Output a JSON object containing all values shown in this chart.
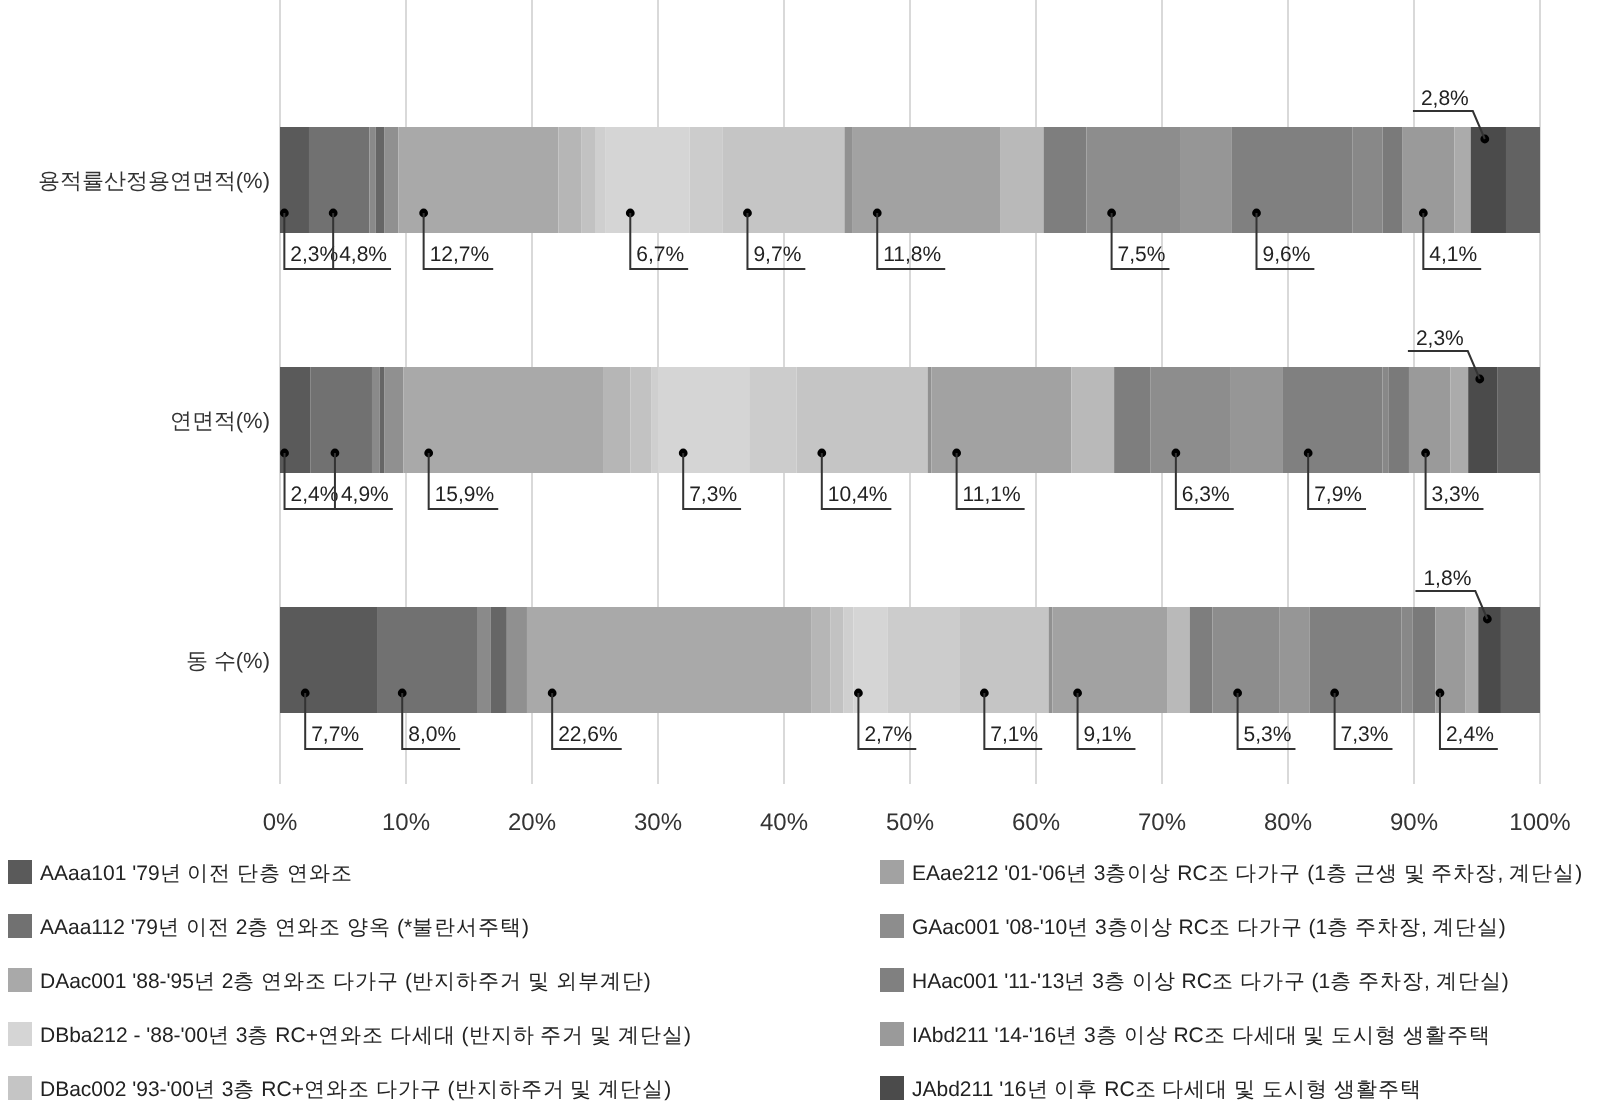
{
  "chart_data": {
    "type": "bar",
    "orientation": "horizontal",
    "stacked": true,
    "grid": "x",
    "legend": "bottom",
    "categories": [
      "용적률산정용연면적(%)",
      "연면적(%)",
      "동 수(%)"
    ],
    "xlim": [
      0,
      100
    ],
    "xticks": [
      {
        "value": 0,
        "label": "0%"
      },
      {
        "value": 10,
        "label": "10%"
      },
      {
        "value": 20,
        "label": "20%"
      },
      {
        "value": 30,
        "label": "30%"
      },
      {
        "value": 40,
        "label": "40%"
      },
      {
        "value": 50,
        "label": "50%"
      },
      {
        "value": 60,
        "label": "60%"
      },
      {
        "value": 70,
        "label": "70%"
      },
      {
        "value": 80,
        "label": "80%"
      },
      {
        "value": 90,
        "label": "90%"
      },
      {
        "value": 100,
        "label": "100%"
      }
    ],
    "series": [
      {
        "name": "AAaa101 '79년 이전 단층 연와조",
        "color": "#5a5a5a",
        "values": [
          2.3,
          2.4,
          7.7
        ],
        "value_labels": [
          "2,3%",
          "2,4%",
          "7,7%"
        ]
      },
      {
        "name": "AAaa112 '79년 이전 2층 연와조 양옥 (*불란서주택)",
        "color": "#717171",
        "values": [
          4.8,
          4.9,
          8.0
        ],
        "value_labels": [
          "4,8%",
          "4,9%",
          "8,0%"
        ]
      },
      {
        "color": "#8a8a8a",
        "values": [
          0.5,
          0.6,
          1.0
        ]
      },
      {
        "color": "#666666",
        "values": [
          0.7,
          0.4,
          1.3
        ]
      },
      {
        "color": "#909090",
        "values": [
          1.1,
          1.5,
          1.6
        ]
      },
      {
        "name": "DAac001 '88-'95년 2층 연와조 다가구 (반지하주거 및 외부계단)",
        "color": "#a9a9a9",
        "values": [
          12.7,
          15.9,
          22.6
        ],
        "value_labels": [
          "12,7%",
          "15,9%",
          "22,6%"
        ]
      },
      {
        "color": "#b6b6b6",
        "values": [
          1.8,
          2.1,
          1.5
        ]
      },
      {
        "color": "#c2c2c2",
        "values": [
          1.1,
          1.7,
          1.0
        ]
      },
      {
        "color": "#cfcfcf",
        "values": [
          0.8,
          0.5,
          0.8
        ]
      },
      {
        "name": "DBba212 - '88-'00년 3층 RC+연와조 다세대 (반지하 주거 및 계단실)",
        "color": "#d5d5d5",
        "values": [
          6.7,
          7.3,
          2.7
        ],
        "value_labels": [
          "6,7%",
          "7,3%",
          "2,7%"
        ]
      },
      {
        "color": "#cccccc",
        "values": [
          2.6,
          3.7,
          5.7
        ]
      },
      {
        "name": "DBac002 '93-'00년 3층 RC+연와조 다가구 (반지하주거 및 계단실)",
        "color": "#c5c5c5",
        "values": [
          9.7,
          10.4,
          7.1
        ],
        "value_labels": [
          "9,7%",
          "10,4%",
          "7,1%"
        ]
      },
      {
        "color": "#919191",
        "values": [
          0.6,
          0.3,
          0.3
        ]
      },
      {
        "name": "EAae212 '01-'06년 3층이상 RC조 다가구 (1층 근생 및 주차장, 계단실)",
        "color": "#a2a2a2",
        "values": [
          11.8,
          11.1,
          9.1
        ],
        "value_labels": [
          "11,8%",
          "11,1%",
          "9,1%"
        ]
      },
      {
        "color": "#b9b9b9",
        "values": [
          3.4,
          3.4,
          1.8
        ]
      },
      {
        "color": "#7e7e7e",
        "values": [
          3.4,
          2.9,
          1.8
        ]
      },
      {
        "name": "GAac001 '08-'10년 3층이상 RC조 다가구 (1층 주차장, 계단실)",
        "color": "#8d8d8d",
        "values": [
          7.5,
          6.3,
          5.3
        ],
        "value_labels": [
          "7,5%",
          "6,3%",
          "5,3%"
        ]
      },
      {
        "color": "#969696",
        "values": [
          4.0,
          4.2,
          2.4
        ]
      },
      {
        "name": "HAac001 '11-'13년 3층 이상 RC조 다가구 (1층 주차장, 계단실)",
        "color": "#808080",
        "values": [
          9.6,
          7.9,
          7.3
        ],
        "value_labels": [
          "9,6%",
          "7,9%",
          "7,3%"
        ]
      },
      {
        "color": "#888888",
        "values": [
          2.4,
          0.5,
          0.9
        ]
      },
      {
        "color": "#7a7a7a",
        "values": [
          1.6,
          1.6,
          1.8
        ]
      },
      {
        "name": "IAbd211 '14-'16년 3층 이상 RC조 다세대 및 도시형 생활주택",
        "color": "#9a9a9a",
        "values": [
          4.1,
          3.3,
          2.4
        ],
        "value_labels": [
          "4,1%",
          "3,3%",
          "2,4%"
        ]
      },
      {
        "color": "#ababab",
        "values": [
          1.3,
          1.4,
          1.0
        ]
      },
      {
        "name": "JAbd211 '16년 이후 RC조 다세대 및 도시형 생활주택",
        "color": "#4b4b4b",
        "values": [
          2.8,
          2.3,
          1.8
        ],
        "value_labels": [
          "2,8%",
          "2,3%",
          "1,8%"
        ]
      },
      {
        "color": "#626262",
        "values": [
          2.7,
          3.4,
          3.1
        ]
      }
    ]
  }
}
